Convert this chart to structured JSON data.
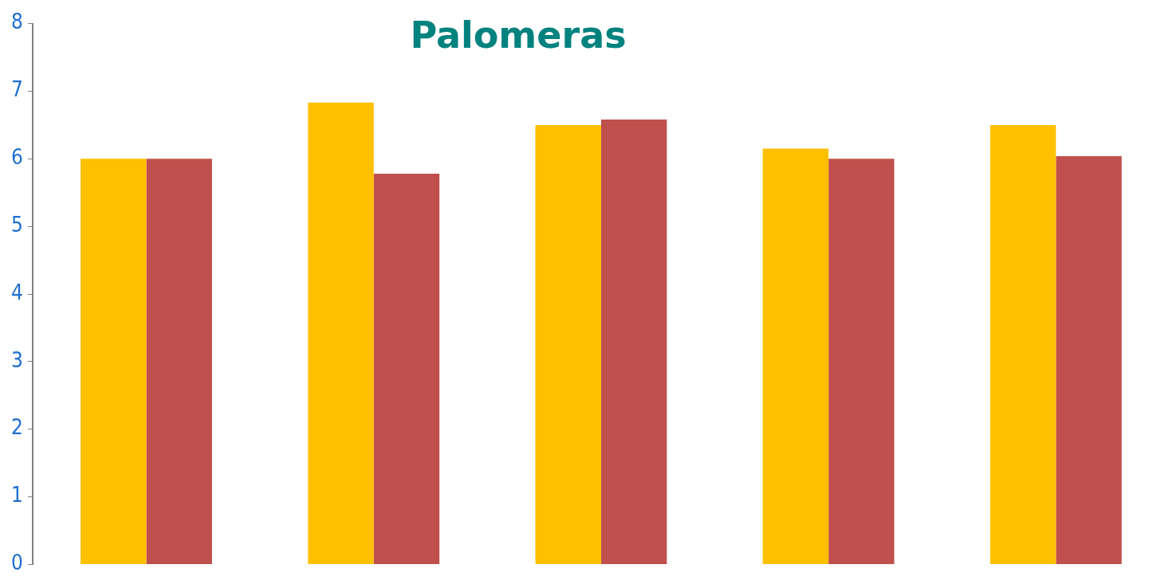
{
  "chart_data": {
    "type": "bar",
    "title": "Palomeras",
    "categories": [
      null,
      null,
      null,
      null,
      null
    ],
    "series": [
      {
        "color": "#ffc000",
        "values": [
          6.0,
          6.83,
          6.5,
          6.15,
          6.5
        ]
      },
      {
        "color": "#c0504d",
        "values": [
          6.0,
          5.78,
          6.58,
          6.0,
          6.04
        ]
      }
    ],
    "ylim": [
      0,
      8
    ],
    "yticks": [
      0,
      1,
      2,
      3,
      4,
      5,
      6,
      7,
      8
    ],
    "grid": false,
    "legend": false,
    "tick_labels": "y"
  }
}
